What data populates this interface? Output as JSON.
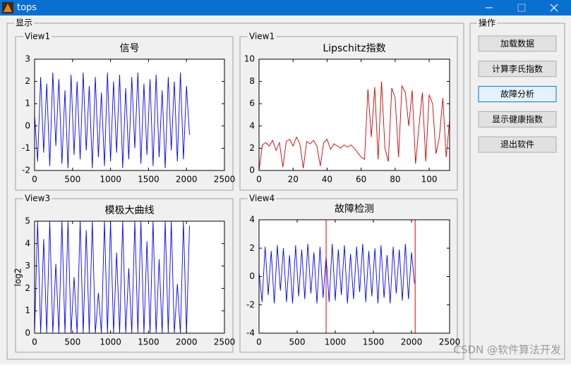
{
  "window": {
    "title": "tops"
  },
  "display_panel": {
    "title": "显示"
  },
  "operations_panel": {
    "title": "操作",
    "buttons": [
      "加载数据",
      "计算李氏指数",
      "故障分析",
      "显示健康指数",
      "退出软件"
    ]
  },
  "watermark": "CSDN @软件算法开发",
  "chart_data": [
    {
      "type": "line",
      "panel": "View1",
      "title": "信号",
      "x": [
        0,
        40,
        80,
        120,
        160,
        200,
        240,
        280,
        320,
        360,
        400,
        440,
        480,
        520,
        560,
        600,
        640,
        680,
        720,
        760,
        800,
        840,
        880,
        920,
        960,
        1000,
        1040,
        1080,
        1120,
        1160,
        1200,
        1240,
        1280,
        1320,
        1360,
        1400,
        1440,
        1480,
        1520,
        1560,
        1600,
        1640,
        1680,
        1720,
        1760,
        1800,
        1840,
        1880,
        1920,
        1960,
        2000,
        2040
      ],
      "series": [
        {
          "color": "#0000ff",
          "values": [
            0.5,
            -1.6,
            2.2,
            -1.2,
            1.9,
            -1.8,
            2.4,
            -0.9,
            2.1,
            -1.7,
            1.6,
            -1.9,
            2.3,
            -1.3,
            2.0,
            -1.5,
            2.4,
            -1.1,
            1.8,
            -1.9,
            2.2,
            -1.4,
            1.5,
            -1.8,
            2.4,
            -1.6,
            2.0,
            -1.2,
            2.3,
            -1.9,
            1.7,
            -1.5,
            2.2,
            -1.0,
            2.4,
            -1.7,
            1.9,
            -1.3,
            2.1,
            -1.8,
            2.3,
            -1.4,
            1.6,
            -1.9,
            2.2,
            -1.1,
            2.0,
            -1.6,
            2.4,
            -1.5,
            1.8,
            -0.4
          ]
        }
      ],
      "xlim": [
        0,
        2500
      ],
      "xticks": [
        0,
        500,
        1000,
        1500,
        2000,
        2500
      ],
      "ylim": [
        -2,
        3
      ],
      "yticks": [
        -2,
        -1,
        0,
        1,
        2,
        3
      ]
    },
    {
      "type": "line",
      "panel": "View1",
      "title": "Lipschitz指数",
      "x": [
        0,
        2,
        4,
        6,
        8,
        10,
        12,
        14,
        16,
        18,
        20,
        22,
        24,
        26,
        28,
        30,
        32,
        34,
        36,
        38,
        40,
        42,
        44,
        46,
        48,
        50,
        52,
        54,
        56,
        58,
        60,
        62,
        64,
        66,
        68,
        70,
        72,
        74,
        76,
        78,
        80,
        82,
        84,
        86,
        88,
        90,
        92,
        94,
        96,
        98,
        100,
        102,
        104,
        106,
        108,
        110,
        112
      ],
      "series": [
        {
          "color": "#cc0000",
          "values": [
            0,
            2.3,
            2.5,
            2.2,
            2.7,
            1.8,
            2.5,
            0.3,
            2.6,
            2.8,
            2.2,
            3.0,
            2.4,
            0.2,
            2.6,
            2.4,
            2.7,
            2.2,
            0.4,
            2.5,
            2.8,
            1.9,
            2.4,
            2.2,
            2.0,
            2.3,
            2.1,
            2.3,
            2.0,
            1.6,
            1.2,
            1.0,
            7.3,
            3.0,
            7.5,
            1.0,
            8.0,
            2.0,
            0.8,
            7.4,
            6.5,
            1.2,
            7.6,
            7.0,
            4.0,
            7.2,
            0.6,
            4.0,
            7.0,
            0.8,
            6.8,
            6.0,
            1.5,
            3.0,
            6.5,
            1.2,
            4.5
          ]
        }
      ],
      "xlim": [
        0,
        112
      ],
      "xticks": [
        0,
        20,
        40,
        60,
        80,
        100
      ],
      "ylim": [
        0,
        10
      ],
      "yticks": [
        0,
        2,
        4,
        6,
        8,
        10
      ]
    },
    {
      "type": "line",
      "panel": "View3",
      "title": "模极大曲线",
      "y_label": "log2",
      "x": [
        0,
        40,
        80,
        120,
        160,
        200,
        240,
        280,
        320,
        360,
        400,
        440,
        480,
        520,
        560,
        600,
        640,
        680,
        720,
        760,
        800,
        840,
        880,
        920,
        960,
        1000,
        1040,
        1080,
        1120,
        1160,
        1200,
        1240,
        1280,
        1320,
        1360,
        1400,
        1440,
        1480,
        1520,
        1560,
        1600,
        1640,
        1680,
        1720,
        1760,
        1800,
        1840,
        1880,
        1920,
        1960,
        2000,
        2040
      ],
      "series": [
        {
          "color": "#0000ff",
          "values": [
            0,
            5,
            0,
            4.2,
            0,
            5,
            0,
            3.1,
            0,
            5,
            0,
            5,
            0,
            2.5,
            0,
            5,
            0,
            4.6,
            0,
            5,
            0,
            1.8,
            0,
            5,
            0,
            5,
            0,
            3.6,
            0,
            5,
            0,
            2.9,
            0,
            5,
            0,
            5,
            0,
            4.1,
            0,
            5,
            0,
            3.3,
            0,
            5,
            0,
            5,
            0,
            2.2,
            0,
            5,
            0,
            4.8
          ]
        }
      ],
      "xlim": [
        0,
        2500
      ],
      "xticks": [
        0,
        500,
        1000,
        1500,
        2000,
        2500
      ],
      "ylim": [
        0,
        5
      ],
      "yticks": [
        0,
        1,
        2,
        3,
        4,
        5
      ]
    },
    {
      "type": "line",
      "panel": "View4",
      "title": "故障检测",
      "x": [
        0,
        40,
        80,
        120,
        160,
        200,
        240,
        280,
        320,
        360,
        400,
        440,
        480,
        520,
        560,
        600,
        640,
        680,
        720,
        760,
        800,
        840,
        880,
        920,
        960,
        1000,
        1040,
        1080,
        1120,
        1160,
        1200,
        1240,
        1280,
        1320,
        1360,
        1400,
        1440,
        1480,
        1520,
        1560,
        1600,
        1640,
        1680,
        1720,
        1760,
        1800,
        1840,
        1880,
        1920,
        1960,
        2000,
        2040
      ],
      "series": [
        {
          "color": "#0000ff",
          "values": [
            0.3,
            -1.8,
            2.1,
            -1.3,
            1.8,
            -1.9,
            2.2,
            -1.0,
            2.0,
            -1.8,
            1.5,
            -1.9,
            2.2,
            -1.4,
            1.9,
            -1.6,
            2.3,
            -1.2,
            1.7,
            -1.9,
            2.1,
            -1.5,
            1.4,
            -1.8,
            2.3,
            -1.7,
            1.9,
            -1.3,
            2.2,
            -1.9,
            1.6,
            -1.6,
            2.1,
            -1.1,
            2.3,
            -1.8,
            1.8,
            -1.4,
            2.0,
            -1.9,
            2.2,
            -1.5,
            1.5,
            -1.9,
            2.1,
            -1.2,
            1.9,
            -1.7,
            2.3,
            -1.6,
            1.7,
            -0.5
          ]
        }
      ],
      "vlines": {
        "color": "#dd0000",
        "values": [
          880,
          2048
        ]
      },
      "xlim": [
        0,
        2500
      ],
      "xticks": [
        0,
        500,
        1000,
        1500,
        2000,
        2500
      ],
      "ylim": [
        -4,
        4
      ],
      "yticks": [
        -4,
        -2,
        0,
        2,
        4
      ]
    }
  ]
}
